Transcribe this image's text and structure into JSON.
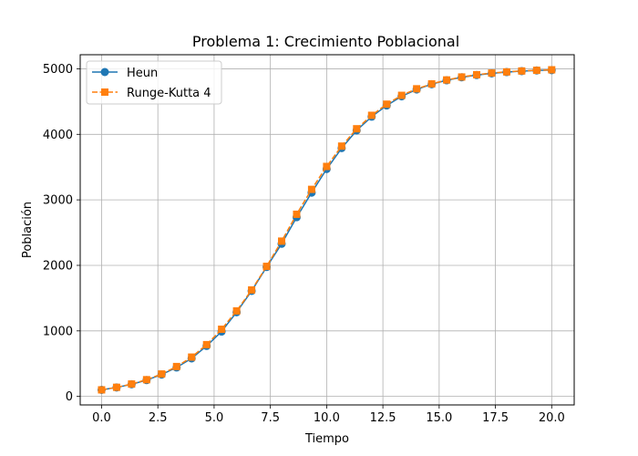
{
  "chart_data": {
    "type": "line",
    "title": "Problema 1: Crecimiento Poblacional",
    "xlabel": "Tiempo",
    "ylabel": "Población",
    "xlim": [
      -0.95,
      21.0
    ],
    "ylim": [
      -130,
      5215
    ],
    "xticks": [
      0.0,
      2.5,
      5.0,
      7.5,
      10.0,
      12.5,
      15.0,
      17.5,
      20.0
    ],
    "xtick_labels": [
      "0.0",
      "2.5",
      "5.0",
      "7.5",
      "10.0",
      "12.5",
      "15.0",
      "17.5",
      "20.0"
    ],
    "yticks": [
      0,
      1000,
      2000,
      3000,
      4000,
      5000
    ],
    "ytick_labels": [
      "0",
      "1000",
      "2000",
      "3000",
      "4000",
      "5000"
    ],
    "grid": true,
    "legend_position": "top-left",
    "x": [
      0.0,
      0.667,
      1.333,
      2.0,
      2.667,
      3.333,
      4.0,
      4.667,
      5.333,
      6.0,
      6.667,
      7.333,
      8.0,
      8.667,
      9.333,
      10.0,
      10.667,
      11.333,
      12.0,
      12.667,
      13.333,
      14.0,
      14.667,
      15.333,
      16.0,
      16.667,
      17.333,
      18.0,
      18.667,
      19.333,
      20.0
    ],
    "series": [
      {
        "name": "Heun",
        "color": "#1f77b4",
        "marker": "circle",
        "line_style": "solid",
        "values": [
          100,
          137,
          185,
          249,
          333,
          442,
          580,
          771,
          990,
          1285,
          1610,
          1975,
          2330,
          2735,
          3110,
          3470,
          3790,
          4060,
          4270,
          4440,
          4580,
          4685,
          4765,
          4825,
          4870,
          4905,
          4930,
          4950,
          4965,
          4975,
          4980
        ]
      },
      {
        "name": "Runge-Kutta 4",
        "color": "#ff7f0e",
        "marker": "square",
        "line_style": "dashed",
        "values": [
          100,
          139,
          189,
          255,
          342,
          456,
          600,
          790,
          1025,
          1305,
          1625,
          1985,
          2370,
          2780,
          3160,
          3510,
          3820,
          4085,
          4290,
          4460,
          4595,
          4695,
          4770,
          4830,
          4875,
          4910,
          4935,
          4953,
          4967,
          4977,
          4985
        ]
      }
    ]
  }
}
